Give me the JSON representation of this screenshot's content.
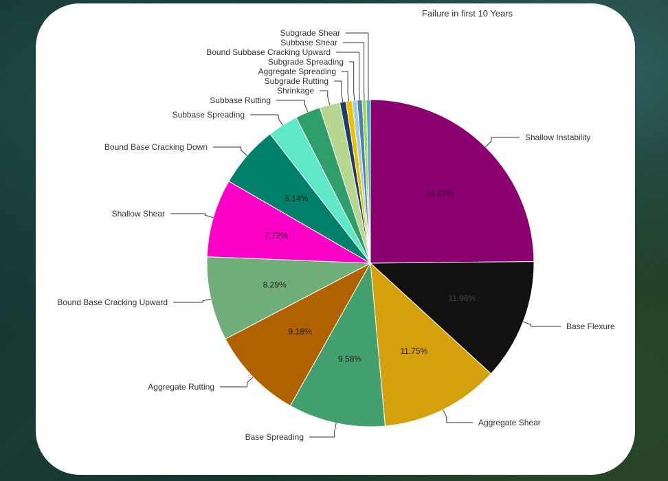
{
  "chart_data": {
    "type": "pie",
    "title": "Failure in first 10 Years",
    "slices": [
      {
        "label": "Shallow Instability",
        "value": 24.83,
        "pct_label": "24.83%",
        "color": "#8b006f",
        "text_color": "#3a0030"
      },
      {
        "label": "Base Flexure",
        "value": 11.96,
        "pct_label": "11.96%",
        "color": "#111111",
        "text_color": "#444444"
      },
      {
        "label": "Aggregate Shear",
        "value": 11.75,
        "pct_label": "11.75%",
        "color": "#d4a00c",
        "text_color": "#222222"
      },
      {
        "label": "Base Spreading",
        "value": 9.58,
        "pct_label": "9.58%",
        "color": "#43a06e",
        "text_color": "#222222"
      },
      {
        "label": "Aggregate Rutting",
        "value": 9.18,
        "pct_label": "9.18%",
        "color": "#b06100",
        "text_color": "#222222"
      },
      {
        "label": "Bound Base Cracking Upward",
        "value": 8.29,
        "pct_label": "8.29%",
        "color": "#6fae78",
        "text_color": "#222222"
      },
      {
        "label": "Shallow Shear",
        "value": 7.72,
        "pct_label": "7.72%",
        "color": "#ff00c8",
        "text_color": "#222222"
      },
      {
        "label": "Bound Base Cracking Down",
        "value": 6.14,
        "pct_label": "6.14%",
        "color": "#00806a",
        "text_color": "#222222"
      },
      {
        "label": "Subbase Spreading",
        "value": 3.0,
        "pct_label": "",
        "color": "#5ee8c8",
        "text_color": "#222222"
      },
      {
        "label": "Subbase Rutting",
        "value": 2.5,
        "pct_label": "",
        "color": "#2e9e6a",
        "text_color": "#222222"
      },
      {
        "label": "Shrinkage",
        "value": 2.0,
        "pct_label": "",
        "color": "#b7d68f",
        "text_color": "#222222"
      },
      {
        "label": "Subgrade Rutting",
        "value": 0.6,
        "pct_label": "",
        "color": "#1f3d66",
        "text_color": "#222222"
      },
      {
        "label": "Aggregate Spreading",
        "value": 0.6,
        "pct_label": "",
        "color": "#f0c000",
        "text_color": "#222222"
      },
      {
        "label": "Subgrade Spreading",
        "value": 0.5,
        "pct_label": "",
        "color": "#9fd0d8",
        "text_color": "#222222"
      },
      {
        "label": "Bound Subbase Cracking Upward",
        "value": 0.5,
        "pct_label": "",
        "color": "#4f7fb0",
        "text_color": "#222222"
      },
      {
        "label": "Subbase Shear",
        "value": 0.4,
        "pct_label": "",
        "color": "#a8d850",
        "text_color": "#222222"
      },
      {
        "label": "Subgrade Shear",
        "value": 0.4,
        "pct_label": "",
        "color": "#40b8c0",
        "text_color": "#222222"
      }
    ]
  }
}
